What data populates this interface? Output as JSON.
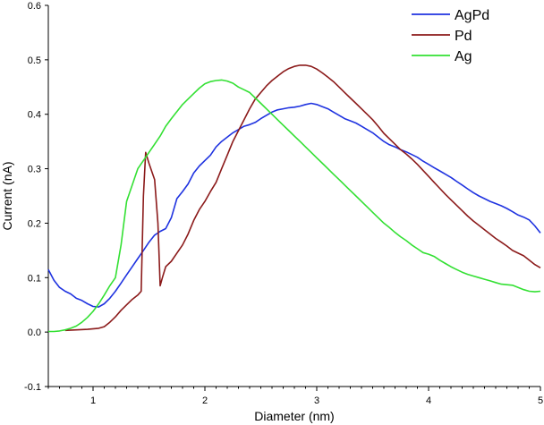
{
  "chart_data": {
    "type": "line",
    "title": "",
    "xlabel": "Diameter (nm)",
    "ylabel": "Current (nA)",
    "xlim": [
      0.6,
      5.0
    ],
    "ylim": [
      -0.1,
      0.6
    ],
    "x_ticks": [
      1,
      2,
      3,
      4,
      5
    ],
    "x_tick_labels": [
      "1",
      "2",
      "3",
      "4",
      "5"
    ],
    "y_ticks": [
      -0.1,
      0.0,
      0.1,
      0.2,
      0.3,
      0.4,
      0.5,
      0.6
    ],
    "y_tick_labels": [
      "-0.1",
      "0.0",
      "0.1",
      "0.2",
      "0.3",
      "0.4",
      "0.5",
      "0.6"
    ],
    "grid": false,
    "legend_position": "top-right",
    "series": [
      {
        "name": "AgPd",
        "color": "#1f33e0",
        "points": [
          [
            0.6,
            0.115
          ],
          [
            0.65,
            0.095
          ],
          [
            0.7,
            0.082
          ],
          [
            0.75,
            0.075
          ],
          [
            0.8,
            0.07
          ],
          [
            0.85,
            0.062
          ],
          [
            0.9,
            0.058
          ],
          [
            0.95,
            0.052
          ],
          [
            1.0,
            0.047
          ],
          [
            1.05,
            0.046
          ],
          [
            1.1,
            0.052
          ],
          [
            1.15,
            0.062
          ],
          [
            1.2,
            0.075
          ],
          [
            1.25,
            0.09
          ],
          [
            1.3,
            0.105
          ],
          [
            1.35,
            0.12
          ],
          [
            1.4,
            0.135
          ],
          [
            1.45,
            0.15
          ],
          [
            1.5,
            0.165
          ],
          [
            1.55,
            0.178
          ],
          [
            1.6,
            0.185
          ],
          [
            1.65,
            0.19
          ],
          [
            1.7,
            0.21
          ],
          [
            1.75,
            0.245
          ],
          [
            1.8,
            0.258
          ],
          [
            1.85,
            0.272
          ],
          [
            1.9,
            0.292
          ],
          [
            1.95,
            0.305
          ],
          [
            2.0,
            0.315
          ],
          [
            2.05,
            0.325
          ],
          [
            2.1,
            0.34
          ],
          [
            2.15,
            0.35
          ],
          [
            2.2,
            0.358
          ],
          [
            2.25,
            0.366
          ],
          [
            2.3,
            0.372
          ],
          [
            2.35,
            0.378
          ],
          [
            2.4,
            0.381
          ],
          [
            2.45,
            0.385
          ],
          [
            2.5,
            0.392
          ],
          [
            2.55,
            0.398
          ],
          [
            2.6,
            0.404
          ],
          [
            2.65,
            0.408
          ],
          [
            2.7,
            0.41
          ],
          [
            2.75,
            0.412
          ],
          [
            2.8,
            0.413
          ],
          [
            2.85,
            0.415
          ],
          [
            2.9,
            0.418
          ],
          [
            2.95,
            0.42
          ],
          [
            3.0,
            0.418
          ],
          [
            3.05,
            0.414
          ],
          [
            3.1,
            0.41
          ],
          [
            3.15,
            0.404
          ],
          [
            3.2,
            0.398
          ],
          [
            3.25,
            0.392
          ],
          [
            3.3,
            0.388
          ],
          [
            3.35,
            0.384
          ],
          [
            3.4,
            0.378
          ],
          [
            3.45,
            0.372
          ],
          [
            3.5,
            0.366
          ],
          [
            3.55,
            0.358
          ],
          [
            3.6,
            0.35
          ],
          [
            3.65,
            0.344
          ],
          [
            3.7,
            0.34
          ],
          [
            3.75,
            0.335
          ],
          [
            3.8,
            0.331
          ],
          [
            3.85,
            0.326
          ],
          [
            3.9,
            0.321
          ],
          [
            3.95,
            0.314
          ],
          [
            4.0,
            0.308
          ],
          [
            4.05,
            0.302
          ],
          [
            4.1,
            0.296
          ],
          [
            4.15,
            0.29
          ],
          [
            4.2,
            0.284
          ],
          [
            4.25,
            0.277
          ],
          [
            4.3,
            0.27
          ],
          [
            4.35,
            0.263
          ],
          [
            4.4,
            0.256
          ],
          [
            4.45,
            0.25
          ],
          [
            4.5,
            0.245
          ],
          [
            4.55,
            0.24
          ],
          [
            4.6,
            0.236
          ],
          [
            4.65,
            0.232
          ],
          [
            4.7,
            0.227
          ],
          [
            4.75,
            0.221
          ],
          [
            4.8,
            0.215
          ],
          [
            4.85,
            0.211
          ],
          [
            4.9,
            0.206
          ],
          [
            4.95,
            0.195
          ],
          [
            5.0,
            0.182
          ]
        ]
      },
      {
        "name": "Pd",
        "color": "#8b1a1a",
        "points": [
          [
            0.75,
            0.003
          ],
          [
            0.85,
            0.004
          ],
          [
            0.95,
            0.005
          ],
          [
            1.05,
            0.007
          ],
          [
            1.1,
            0.01
          ],
          [
            1.15,
            0.018
          ],
          [
            1.2,
            0.028
          ],
          [
            1.25,
            0.04
          ],
          [
            1.3,
            0.05
          ],
          [
            1.35,
            0.06
          ],
          [
            1.4,
            0.068
          ],
          [
            1.43,
            0.075
          ],
          [
            1.45,
            0.25
          ],
          [
            1.47,
            0.33
          ],
          [
            1.5,
            0.31
          ],
          [
            1.55,
            0.28
          ],
          [
            1.58,
            0.2
          ],
          [
            1.6,
            0.085
          ],
          [
            1.62,
            0.1
          ],
          [
            1.65,
            0.12
          ],
          [
            1.7,
            0.13
          ],
          [
            1.75,
            0.145
          ],
          [
            1.8,
            0.16
          ],
          [
            1.85,
            0.18
          ],
          [
            1.9,
            0.205
          ],
          [
            1.95,
            0.225
          ],
          [
            2.0,
            0.24
          ],
          [
            2.05,
            0.258
          ],
          [
            2.1,
            0.275
          ],
          [
            2.15,
            0.3
          ],
          [
            2.2,
            0.325
          ],
          [
            2.25,
            0.35
          ],
          [
            2.3,
            0.37
          ],
          [
            2.35,
            0.39
          ],
          [
            2.4,
            0.41
          ],
          [
            2.45,
            0.428
          ],
          [
            2.5,
            0.44
          ],
          [
            2.55,
            0.452
          ],
          [
            2.6,
            0.462
          ],
          [
            2.65,
            0.47
          ],
          [
            2.7,
            0.478
          ],
          [
            2.75,
            0.484
          ],
          [
            2.8,
            0.488
          ],
          [
            2.85,
            0.49
          ],
          [
            2.9,
            0.49
          ],
          [
            2.95,
            0.488
          ],
          [
            3.0,
            0.483
          ],
          [
            3.05,
            0.476
          ],
          [
            3.1,
            0.468
          ],
          [
            3.15,
            0.46
          ],
          [
            3.2,
            0.45
          ],
          [
            3.25,
            0.44
          ],
          [
            3.3,
            0.43
          ],
          [
            3.35,
            0.42
          ],
          [
            3.4,
            0.41
          ],
          [
            3.45,
            0.4
          ],
          [
            3.5,
            0.39
          ],
          [
            3.55,
            0.378
          ],
          [
            3.6,
            0.365
          ],
          [
            3.65,
            0.355
          ],
          [
            3.7,
            0.345
          ],
          [
            3.75,
            0.335
          ],
          [
            3.8,
            0.327
          ],
          [
            3.85,
            0.318
          ],
          [
            3.9,
            0.308
          ],
          [
            3.95,
            0.297
          ],
          [
            4.0,
            0.286
          ],
          [
            4.05,
            0.275
          ],
          [
            4.1,
            0.264
          ],
          [
            4.15,
            0.253
          ],
          [
            4.2,
            0.243
          ],
          [
            4.25,
            0.233
          ],
          [
            4.3,
            0.223
          ],
          [
            4.35,
            0.213
          ],
          [
            4.4,
            0.204
          ],
          [
            4.45,
            0.196
          ],
          [
            4.5,
            0.188
          ],
          [
            4.55,
            0.18
          ],
          [
            4.6,
            0.172
          ],
          [
            4.65,
            0.165
          ],
          [
            4.7,
            0.158
          ],
          [
            4.75,
            0.15
          ],
          [
            4.8,
            0.145
          ],
          [
            4.85,
            0.14
          ],
          [
            4.9,
            0.132
          ],
          [
            4.95,
            0.124
          ],
          [
            5.0,
            0.118
          ]
        ]
      },
      {
        "name": "Ag",
        "color": "#33e033",
        "points": [
          [
            0.6,
            0.001
          ],
          [
            0.65,
            0.001
          ],
          [
            0.7,
            0.002
          ],
          [
            0.75,
            0.004
          ],
          [
            0.8,
            0.007
          ],
          [
            0.85,
            0.011
          ],
          [
            0.9,
            0.018
          ],
          [
            0.95,
            0.027
          ],
          [
            1.0,
            0.038
          ],
          [
            1.05,
            0.052
          ],
          [
            1.1,
            0.068
          ],
          [
            1.15,
            0.085
          ],
          [
            1.2,
            0.1
          ],
          [
            1.25,
            0.16
          ],
          [
            1.3,
            0.24
          ],
          [
            1.35,
            0.27
          ],
          [
            1.4,
            0.3
          ],
          [
            1.45,
            0.315
          ],
          [
            1.5,
            0.33
          ],
          [
            1.55,
            0.345
          ],
          [
            1.6,
            0.36
          ],
          [
            1.65,
            0.378
          ],
          [
            1.7,
            0.392
          ],
          [
            1.75,
            0.405
          ],
          [
            1.8,
            0.418
          ],
          [
            1.85,
            0.428
          ],
          [
            1.9,
            0.438
          ],
          [
            1.95,
            0.448
          ],
          [
            2.0,
            0.456
          ],
          [
            2.05,
            0.46
          ],
          [
            2.1,
            0.462
          ],
          [
            2.15,
            0.463
          ],
          [
            2.2,
            0.461
          ],
          [
            2.25,
            0.457
          ],
          [
            2.3,
            0.45
          ],
          [
            2.35,
            0.445
          ],
          [
            2.4,
            0.44
          ],
          [
            2.45,
            0.43
          ],
          [
            2.5,
            0.42
          ],
          [
            2.55,
            0.41
          ],
          [
            2.6,
            0.4
          ],
          [
            2.65,
            0.39
          ],
          [
            2.7,
            0.38
          ],
          [
            2.75,
            0.37
          ],
          [
            2.8,
            0.36
          ],
          [
            2.85,
            0.35
          ],
          [
            2.9,
            0.34
          ],
          [
            2.95,
            0.33
          ],
          [
            3.0,
            0.32
          ],
          [
            3.05,
            0.31
          ],
          [
            3.1,
            0.3
          ],
          [
            3.15,
            0.29
          ],
          [
            3.2,
            0.28
          ],
          [
            3.25,
            0.27
          ],
          [
            3.3,
            0.26
          ],
          [
            3.35,
            0.25
          ],
          [
            3.4,
            0.24
          ],
          [
            3.45,
            0.23
          ],
          [
            3.5,
            0.22
          ],
          [
            3.55,
            0.21
          ],
          [
            3.6,
            0.2
          ],
          [
            3.65,
            0.192
          ],
          [
            3.7,
            0.183
          ],
          [
            3.75,
            0.175
          ],
          [
            3.8,
            0.168
          ],
          [
            3.85,
            0.16
          ],
          [
            3.9,
            0.153
          ],
          [
            3.95,
            0.146
          ],
          [
            4.0,
            0.143
          ],
          [
            4.05,
            0.139
          ],
          [
            4.1,
            0.132
          ],
          [
            4.15,
            0.126
          ],
          [
            4.2,
            0.12
          ],
          [
            4.25,
            0.115
          ],
          [
            4.3,
            0.11
          ],
          [
            4.35,
            0.106
          ],
          [
            4.4,
            0.103
          ],
          [
            4.45,
            0.1
          ],
          [
            4.5,
            0.097
          ],
          [
            4.55,
            0.094
          ],
          [
            4.6,
            0.091
          ],
          [
            4.65,
            0.088
          ],
          [
            4.7,
            0.087
          ],
          [
            4.75,
            0.086
          ],
          [
            4.8,
            0.082
          ],
          [
            4.85,
            0.078
          ],
          [
            4.9,
            0.075
          ],
          [
            4.95,
            0.074
          ],
          [
            5.0,
            0.075
          ]
        ]
      }
    ]
  }
}
